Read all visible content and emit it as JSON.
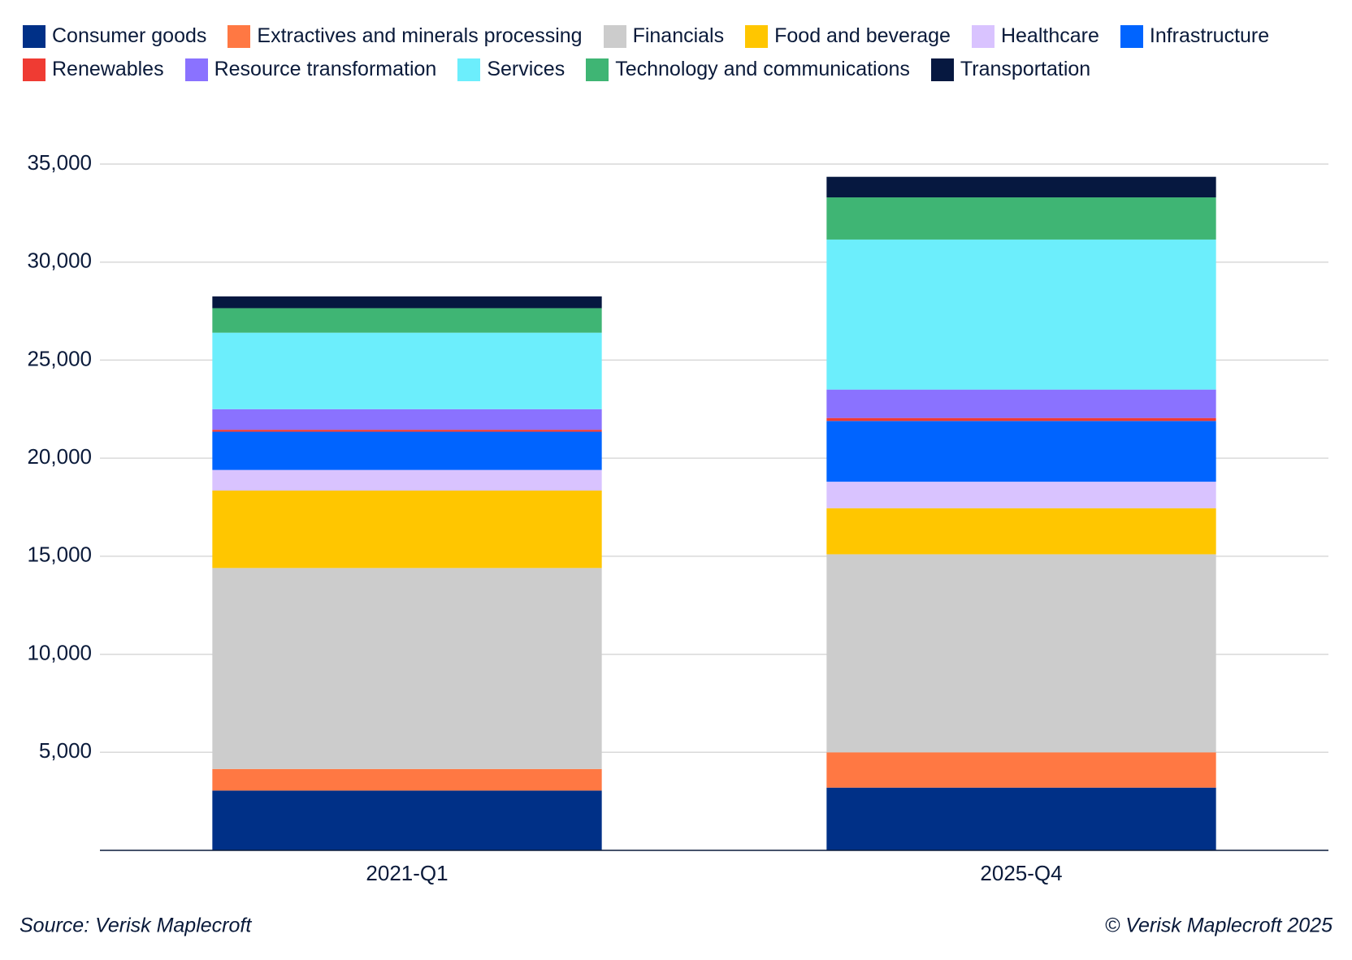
{
  "chart_data": {
    "type": "stacked-bar",
    "categories": [
      "2021-Q1",
      "2025-Q4"
    ],
    "series": [
      {
        "name": "Consumer goods",
        "color": "#003087",
        "values": [
          3050,
          3200
        ]
      },
      {
        "name": "Extractives and minerals processing",
        "color": "#ff7843",
        "values": [
          1100,
          1800
        ]
      },
      {
        "name": "Financials",
        "color": "#cccccc",
        "values": [
          10250,
          10100
        ]
      },
      {
        "name": "Food and beverage",
        "color": "#ffc600",
        "values": [
          3950,
          2350
        ]
      },
      {
        "name": "Healthcare",
        "color": "#d9c3ff",
        "values": [
          1050,
          1350
        ]
      },
      {
        "name": "Infrastructure",
        "color": "#0064ff",
        "values": [
          1950,
          3100
        ]
      },
      {
        "name": "Renewables",
        "color": "#ef3b33",
        "values": [
          100,
          150
        ]
      },
      {
        "name": "Resource transformation",
        "color": "#8a72ff",
        "values": [
          1050,
          1450
        ]
      },
      {
        "name": "Services",
        "color": "#6ceefc",
        "values": [
          3900,
          7650
        ]
      },
      {
        "name": "Technology and communications",
        "color": "#3fb574",
        "values": [
          1250,
          2150
        ]
      },
      {
        "name": "Transportation",
        "color": "#061840",
        "values": [
          600,
          1050
        ]
      }
    ],
    "ylim": [
      0,
      35000
    ],
    "yticks": [
      {
        "value": 5000,
        "label": "5,000"
      },
      {
        "value": 10000,
        "label": "10,000"
      },
      {
        "value": 15000,
        "label": "15,000"
      },
      {
        "value": 20000,
        "label": "20,000"
      },
      {
        "value": 25000,
        "label": "25,000"
      },
      {
        "value": 30000,
        "label": "30,000"
      },
      {
        "value": 35000,
        "label": "35,000"
      }
    ],
    "grid": true,
    "legend": "top",
    "source": "Source: Verisk Maplecroft",
    "copyright": "© Verisk Maplecroft 2025"
  }
}
